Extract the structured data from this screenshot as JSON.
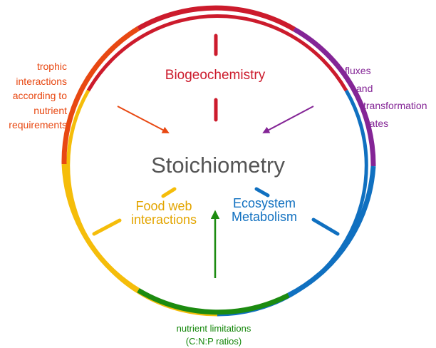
{
  "center": {
    "title": "Stoichiometry"
  },
  "topics": {
    "biogeochemistry": "Biogeochemistry",
    "food_web": [
      "Food web",
      "interactions"
    ],
    "ecosystem": [
      "Ecosystem",
      "Metabolism"
    ]
  },
  "annotations": {
    "trophic": [
      "trophic",
      "interactions",
      "according to",
      "nutrient",
      "requirements"
    ],
    "fluxes": [
      "fluxes",
      "and",
      "transformation",
      "rates"
    ],
    "nutrient": [
      "nutrient limitations",
      "(C:N:P ratios)"
    ]
  },
  "colors": {
    "red": "#cc1b2c",
    "orange": "#e84812",
    "yellow": "#f5bd0a",
    "green": "#1c8b10",
    "blue": "#1070c0",
    "purple": "#842596",
    "text": "#555555"
  }
}
